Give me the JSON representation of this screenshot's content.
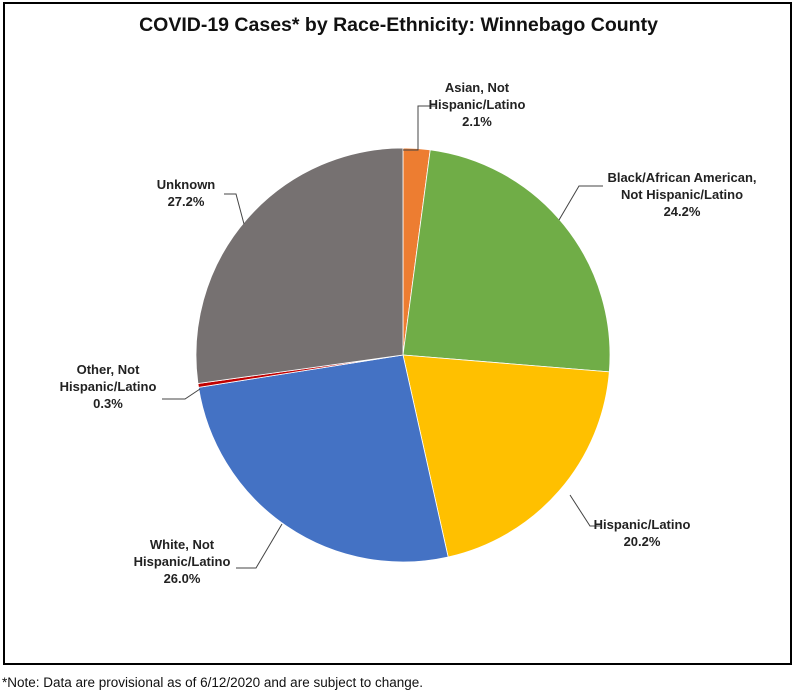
{
  "note": "*Note: Data are provisional as of 6/12/2020 and are subject to change.",
  "chart_data": {
    "type": "pie",
    "title": "COVID-19 Cases* by Race-Ethnicity: Winnebago County",
    "start_angle_deg": 0,
    "direction": "clockwise",
    "slices": [
      {
        "name": "Asian, Not Hispanic/Latino",
        "label_lines": [
          "Asian, Not",
          "Hispanic/Latino"
        ],
        "value": 2.1,
        "value_label": "2.1%",
        "color": "#ED7D31"
      },
      {
        "name": "Black/African American, Not Hispanic/Latino",
        "label_lines": [
          "Black/African American,",
          "Not Hispanic/Latino"
        ],
        "value": 24.2,
        "value_label": "24.2%",
        "color": "#70AD47"
      },
      {
        "name": "Hispanic/Latino",
        "label_lines": [
          "Hispanic/Latino"
        ],
        "value": 20.2,
        "value_label": "20.2%",
        "color": "#FFC000"
      },
      {
        "name": "White, Not Hispanic/Latino",
        "label_lines": [
          "White, Not",
          "Hispanic/Latino"
        ],
        "value": 26.0,
        "value_label": "26.0%",
        "color": "#4472C4"
      },
      {
        "name": "Other, Not Hispanic/Latino",
        "label_lines": [
          "Other, Not",
          "Hispanic/Latino"
        ],
        "value": 0.3,
        "value_label": "0.3%",
        "color": "#C00000"
      },
      {
        "name": "Unknown",
        "label_lines": [
          "Unknown"
        ],
        "value": 27.2,
        "value_label": "27.2%",
        "color": "#767171"
      }
    ]
  }
}
